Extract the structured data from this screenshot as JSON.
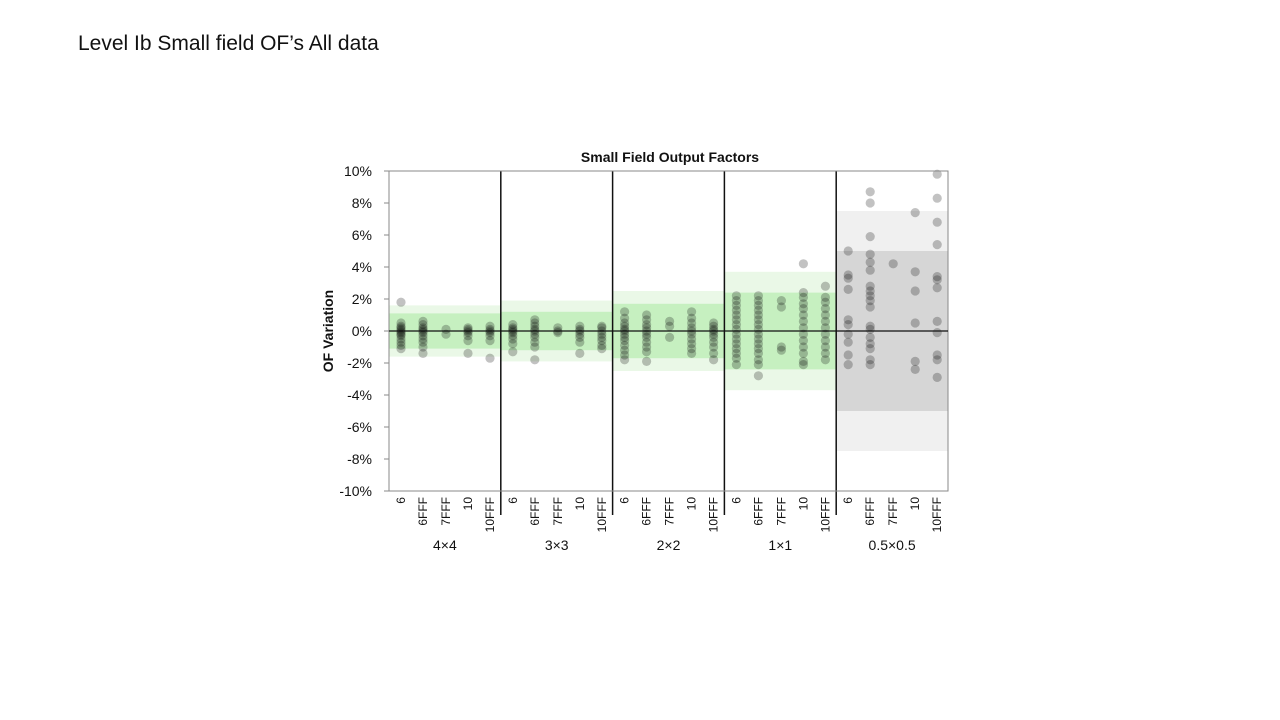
{
  "slide": {
    "title": "Level Ib Small field OF’s All data"
  },
  "chart_data": {
    "type": "scatter",
    "title": "Small Field Output Factors",
    "ylabel": "OF Variation",
    "xlabel": "",
    "ylim": [
      -10,
      10
    ],
    "y_ticks": [
      "10%",
      "8%",
      "6%",
      "4%",
      "2%",
      "0%",
      "-2%",
      "-4%",
      "-6%",
      "-8%",
      "-10%"
    ],
    "grid": false,
    "energies": [
      "6",
      "6FFF",
      "7FFF",
      "10",
      "10FFF"
    ],
    "groups": [
      {
        "label": "4×4",
        "inner_band": 1.1,
        "outer_band": 1.6,
        "band_color": "green",
        "points": {
          "6": [
            1.8,
            0.5,
            0.3,
            0.2,
            0.1,
            0.0,
            -0.1,
            -0.2,
            -0.3,
            -0.5,
            -0.7,
            -0.9,
            -1.1
          ],
          "6FFF": [
            0.6,
            0.4,
            0.2,
            0.1,
            0.0,
            -0.1,
            -0.3,
            -0.5,
            -0.7,
            -1.0,
            -1.4
          ],
          "7FFF": [
            0.1,
            -0.2
          ],
          "10": [
            0.2,
            0.1,
            0.0,
            -0.1,
            -0.3,
            -0.6,
            -1.4
          ],
          "10FFF": [
            0.3,
            0.1,
            0.0,
            -0.1,
            -0.3,
            -0.6,
            -1.7
          ]
        }
      },
      {
        "label": "3×3",
        "inner_band": 1.2,
        "outer_band": 1.9,
        "band_color": "green",
        "points": {
          "6": [
            0.4,
            0.2,
            0.1,
            0.0,
            -0.1,
            -0.3,
            -0.5,
            -0.8,
            -1.3
          ],
          "6FFF": [
            0.7,
            0.5,
            0.3,
            0.1,
            0.0,
            -0.2,
            -0.4,
            -0.7,
            -1.0,
            -1.8
          ],
          "7FFF": [
            0.2,
            0.0,
            -0.1
          ],
          "10": [
            0.3,
            0.1,
            0.0,
            -0.2,
            -0.4,
            -0.7,
            -1.4
          ],
          "10FFF": [
            0.3,
            0.2,
            0.0,
            -0.2,
            -0.4,
            -0.6,
            -0.9,
            -1.1
          ]
        }
      },
      {
        "label": "2×2",
        "inner_band": 1.7,
        "outer_band": 2.5,
        "band_color": "green",
        "points": {
          "6": [
            1.2,
            0.8,
            0.5,
            0.3,
            0.1,
            0.0,
            -0.2,
            -0.4,
            -0.6,
            -0.9,
            -1.2,
            -1.5,
            -1.8
          ],
          "6FFF": [
            1.0,
            0.7,
            0.4,
            0.2,
            0.0,
            -0.2,
            -0.4,
            -0.7,
            -1.0,
            -1.3,
            -1.9
          ],
          "7FFF": [
            0.6,
            0.3,
            -0.4
          ],
          "10": [
            1.2,
            0.8,
            0.5,
            0.2,
            0.0,
            -0.2,
            -0.5,
            -0.8,
            -1.1,
            -1.4
          ],
          "10FFF": [
            0.5,
            0.3,
            0.1,
            0.0,
            -0.2,
            -0.4,
            -0.7,
            -1.0,
            -1.4,
            -1.8
          ]
        }
      },
      {
        "label": "1×1",
        "inner_band": 2.4,
        "outer_band": 3.7,
        "band_color": "green",
        "points": {
          "6": [
            2.2,
            1.9,
            1.6,
            1.3,
            1.0,
            0.7,
            0.4,
            0.1,
            -0.2,
            -0.5,
            -0.8,
            -1.1,
            -1.4,
            -1.7,
            -2.1
          ],
          "6FFF": [
            2.2,
            1.9,
            1.6,
            1.3,
            1.0,
            0.7,
            0.4,
            0.1,
            -0.2,
            -0.5,
            -0.8,
            -1.1,
            -1.4,
            -1.8,
            -2.1,
            -2.8
          ],
          "7FFF": [
            1.9,
            1.5,
            -1.0,
            -1.2
          ],
          "10": [
            4.2,
            2.4,
            2.1,
            1.7,
            1.4,
            1.0,
            0.6,
            0.2,
            -0.2,
            -0.6,
            -1.0,
            -1.4,
            -1.9,
            -2.1
          ],
          "10FFF": [
            2.8,
            2.1,
            1.8,
            1.4,
            1.0,
            0.6,
            0.2,
            -0.2,
            -0.6,
            -1.0,
            -1.4,
            -1.8
          ]
        }
      },
      {
        "label": "0.5×0.5",
        "inner_band": 5.0,
        "outer_band": 7.5,
        "band_color": "gray",
        "points": {
          "6": [
            5.0,
            3.5,
            3.3,
            2.6,
            0.7,
            0.4,
            -0.2,
            -0.7,
            -1.5,
            -2.1
          ],
          "6FFF": [
            8.7,
            8.0,
            5.9,
            4.8,
            4.3,
            3.8,
            2.8,
            2.5,
            2.2,
            1.9,
            1.5,
            0.3,
            0.1,
            -0.4,
            -0.8,
            -1.1,
            -1.8,
            -2.1
          ],
          "7FFF": [
            4.2
          ],
          "10": [
            7.4,
            3.7,
            2.5,
            0.5,
            -1.9,
            -2.4
          ],
          "10FFF": [
            9.8,
            8.3,
            6.8,
            5.4,
            3.4,
            3.2,
            2.7,
            0.6,
            -0.1,
            -1.5,
            -1.8,
            -2.9
          ]
        }
      }
    ]
  }
}
